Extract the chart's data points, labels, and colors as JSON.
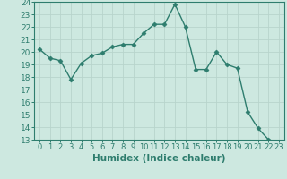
{
  "x": [
    0,
    1,
    2,
    3,
    4,
    5,
    6,
    7,
    8,
    9,
    10,
    11,
    12,
    13,
    14,
    15,
    16,
    17,
    18,
    19,
    20,
    21,
    22,
    23
  ],
  "y": [
    20.2,
    19.5,
    19.3,
    17.8,
    19.1,
    19.7,
    19.9,
    20.4,
    20.6,
    20.6,
    21.5,
    22.2,
    22.2,
    23.8,
    22.0,
    18.6,
    18.6,
    20.0,
    19.0,
    18.7,
    15.2,
    13.9,
    13.0,
    12.8
  ],
  "xlim": [
    -0.5,
    23.5
  ],
  "ylim": [
    13,
    24
  ],
  "yticks": [
    13,
    14,
    15,
    16,
    17,
    18,
    19,
    20,
    21,
    22,
    23,
    24
  ],
  "xticks": [
    0,
    1,
    2,
    3,
    4,
    5,
    6,
    7,
    8,
    9,
    10,
    11,
    12,
    13,
    14,
    15,
    16,
    17,
    18,
    19,
    20,
    21,
    22,
    23
  ],
  "xlabel": "Humidex (Indice chaleur)",
  "line_color": "#2e7d6e",
  "marker": "D",
  "marker_size": 2.5,
  "bg_color": "#cde8e0",
  "grid_color": "#b8d4cc",
  "spine_color": "#2e7d6e",
  "tick_color": "#2e7d6e",
  "label_color": "#2e7d6e",
  "xlabel_fontsize": 7.5,
  "ytick_fontsize": 6.5,
  "xtick_fontsize": 6
}
